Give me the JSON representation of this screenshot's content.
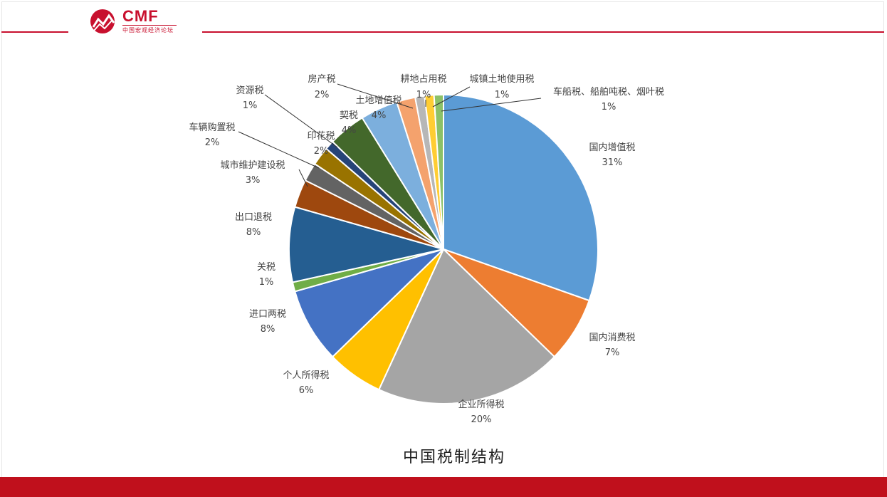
{
  "brand": {
    "logo_text": "CMF",
    "logo_subtitle": "中国宏观经济论坛",
    "colors": {
      "brand_red": "#c8102e",
      "footer_red": "#c0101c"
    }
  },
  "chart_data": {
    "type": "pie",
    "title": "中国税制结构",
    "unit": "%",
    "start_angle": "12 o'clock, clockwise",
    "slices": [
      {
        "name": "国内增值税",
        "value": 31,
        "label": "31%",
        "color": "#5b9bd5"
      },
      {
        "name": "国内消费税",
        "value": 7,
        "label": "7%",
        "color": "#ed7d31"
      },
      {
        "name": "企业所得税",
        "value": 20,
        "label": "20%",
        "color": "#a5a5a5"
      },
      {
        "name": "个人所得税",
        "value": 6,
        "label": "6%",
        "color": "#ffc000"
      },
      {
        "name": "进口两税",
        "value": 8,
        "label": "8%",
        "color": "#4472c4"
      },
      {
        "name": "关税",
        "value": 1,
        "label": "1%",
        "color": "#70ad47"
      },
      {
        "name": "出口退税",
        "value": 8,
        "label": "8%",
        "color": "#255e91"
      },
      {
        "name": "城市维护建设税",
        "value": 3,
        "label": "3%",
        "color": "#9e480e"
      },
      {
        "name": "车辆购置税",
        "value": 2,
        "label": "2%",
        "color": "#636363"
      },
      {
        "name": "印花税",
        "value": 2,
        "label": "2%",
        "color": "#997300"
      },
      {
        "name": "资源税",
        "value": 1,
        "label": "1%",
        "color": "#264478"
      },
      {
        "name": "契税",
        "value": 4,
        "label": "4%",
        "color": "#43682b"
      },
      {
        "name": "土地增值税",
        "value": 4,
        "label": "4%",
        "color": "#7cafdd"
      },
      {
        "name": "房产税",
        "value": 2,
        "label": "2%",
        "color": "#f4a26d"
      },
      {
        "name": "耕地占用税",
        "value": 1,
        "label": "1%",
        "color": "#b7b7b7"
      },
      {
        "name": "城镇土地使用税",
        "value": 1,
        "label": "1%",
        "color": "#ffcd33"
      },
      {
        "name": "车船税、船舶吨税、烟叶税",
        "value": 1,
        "label": "1%",
        "color": "#8cc168"
      }
    ]
  }
}
